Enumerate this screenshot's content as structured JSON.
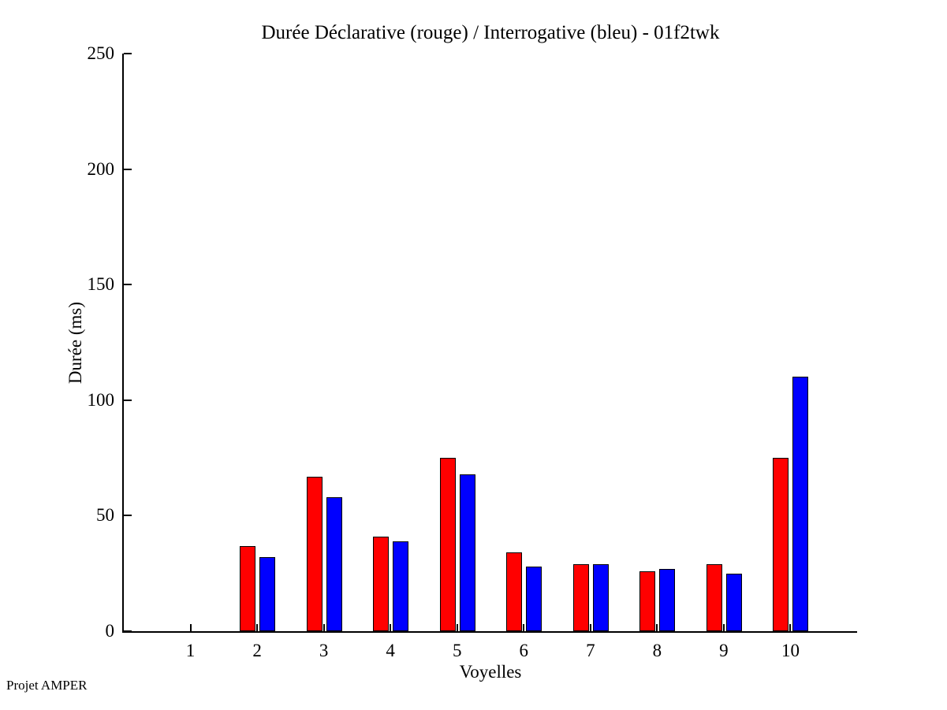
{
  "chart_data": {
    "type": "bar",
    "title": "Durée Déclarative (rouge) / Interrogative (bleu) - 01f2twk",
    "xlabel": "Voyelles",
    "ylabel": "Durée (ms)",
    "categories": [
      "1",
      "2",
      "3",
      "4",
      "5",
      "6",
      "7",
      "8",
      "9",
      "10"
    ],
    "series": [
      {
        "name": "Déclarative (rouge)",
        "color": "#ff0000",
        "values": [
          0,
          37,
          67,
          41,
          75,
          34,
          29,
          26,
          29,
          75
        ]
      },
      {
        "name": "Interrogative (bleu)",
        "color": "#0000ff",
        "values": [
          0,
          32,
          58,
          39,
          68,
          28,
          29,
          27,
          25,
          110
        ]
      }
    ],
    "ylim": [
      0,
      250
    ],
    "yticks": [
      0,
      50,
      100,
      150,
      200,
      250
    ],
    "grid": false,
    "legend_position": "none"
  },
  "footer": {
    "text": "Projet AMPER"
  }
}
